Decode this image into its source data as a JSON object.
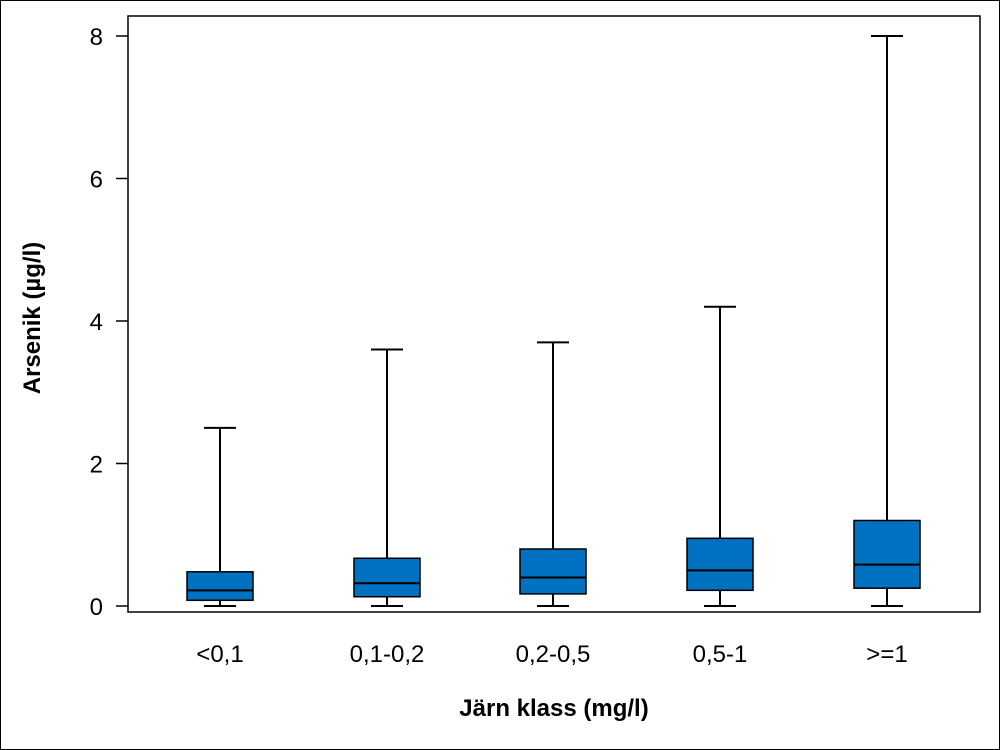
{
  "chart_data": {
    "type": "boxplot",
    "xlabel": "Järn klass (mg/l)",
    "ylabel": "Arsenik (µg/l)",
    "ylim": [
      0,
      8
    ],
    "yticks": [
      "0",
      "2",
      "4",
      "6",
      "8"
    ],
    "yticks_values": [
      0,
      2,
      4,
      6,
      8
    ],
    "grid": false,
    "box_color": "#0070c0",
    "categories": [
      "<0,1",
      "0,1-0,2",
      "0,2-0,5",
      "0,5-1",
      ">=1"
    ],
    "boxes": [
      {
        "category": "<0,1",
        "min": 0,
        "q1": 0.08,
        "median": 0.22,
        "q3": 0.48,
        "max": 2.5
      },
      {
        "category": "0,1-0,2",
        "min": 0,
        "q1": 0.13,
        "median": 0.32,
        "q3": 0.67,
        "max": 3.6
      },
      {
        "category": "0,2-0,5",
        "min": 0,
        "q1": 0.17,
        "median": 0.4,
        "q3": 0.8,
        "max": 3.7
      },
      {
        "category": "0,5-1",
        "min": 0,
        "q1": 0.22,
        "median": 0.5,
        "q3": 0.95,
        "max": 4.2
      },
      {
        "category": ">=1",
        "min": 0,
        "q1": 0.25,
        "median": 0.58,
        "q3": 1.2,
        "max": 8.0
      }
    ]
  }
}
